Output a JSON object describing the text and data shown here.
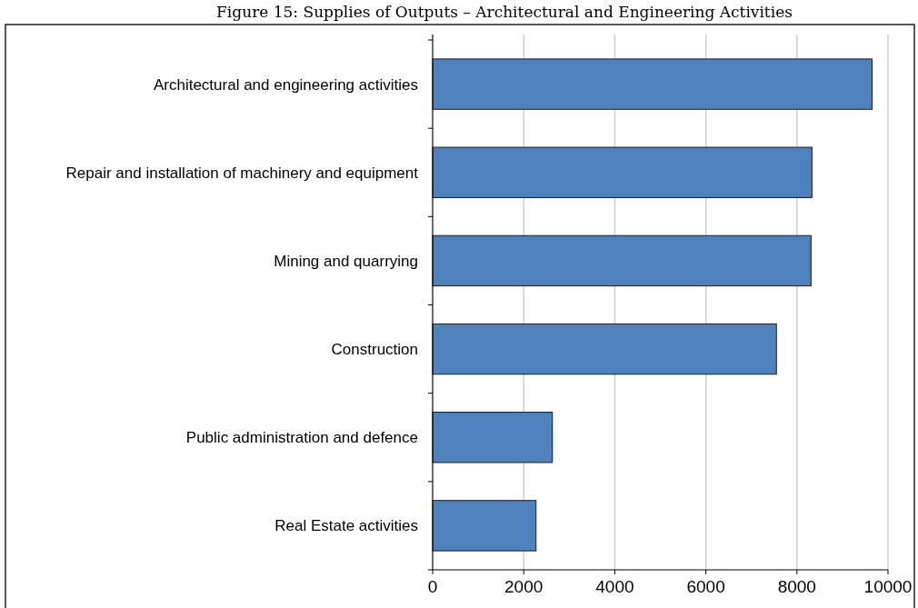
{
  "chart_data": {
    "type": "bar",
    "orientation": "horizontal",
    "title": "Figure 15: Supplies of Outputs – Architectural and Engineering Activities",
    "categories": [
      "Architectural and engineering activities",
      "Repair and installation of machinery and equipment",
      "Mining and quarrying",
      "Construction",
      "Public administration and defence",
      "Real Estate activities"
    ],
    "values": [
      9650,
      8330,
      8310,
      7550,
      2630,
      2270
    ],
    "color": "#4f81bd",
    "xlim": [
      0,
      10000
    ],
    "xticks": [
      0,
      2000,
      4000,
      6000,
      8000,
      10000
    ],
    "grid": "x"
  }
}
